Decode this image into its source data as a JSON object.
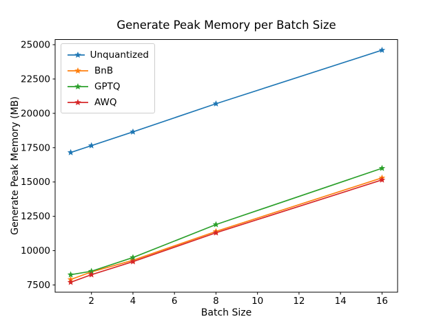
{
  "chart_data": {
    "type": "line",
    "title": "Generate Peak Memory per Batch Size",
    "xlabel": "Batch Size",
    "ylabel": "Generate Peak Memory (MB)",
    "x": [
      1,
      2,
      4,
      8,
      16
    ],
    "series": [
      {
        "name": "Unquantized",
        "color": "#1f77b4",
        "marker": "star",
        "values": [
          17150,
          17650,
          18650,
          20700,
          24600
        ]
      },
      {
        "name": "BnB",
        "color": "#ff7f0e",
        "marker": "star",
        "values": [
          7900,
          8450,
          9300,
          11400,
          15300
        ]
      },
      {
        "name": "GPTQ",
        "color": "#2ca02c",
        "marker": "star",
        "values": [
          8250,
          8500,
          9500,
          11900,
          16000
        ]
      },
      {
        "name": "AWQ",
        "color": "#d62728",
        "marker": "star",
        "values": [
          7700,
          8250,
          9200,
          11300,
          15150
        ]
      }
    ],
    "xticks": [
      2,
      4,
      6,
      8,
      10,
      12,
      14,
      16
    ],
    "yticks": [
      7500,
      10000,
      12500,
      15000,
      17500,
      20000,
      22500,
      25000
    ],
    "xlim": [
      0.25,
      16.75
    ],
    "ylim": [
      6975,
      25375
    ],
    "grid": false,
    "legend_position": "upper left",
    "axis_color": "#000000",
    "background_color": "#ffffff"
  }
}
